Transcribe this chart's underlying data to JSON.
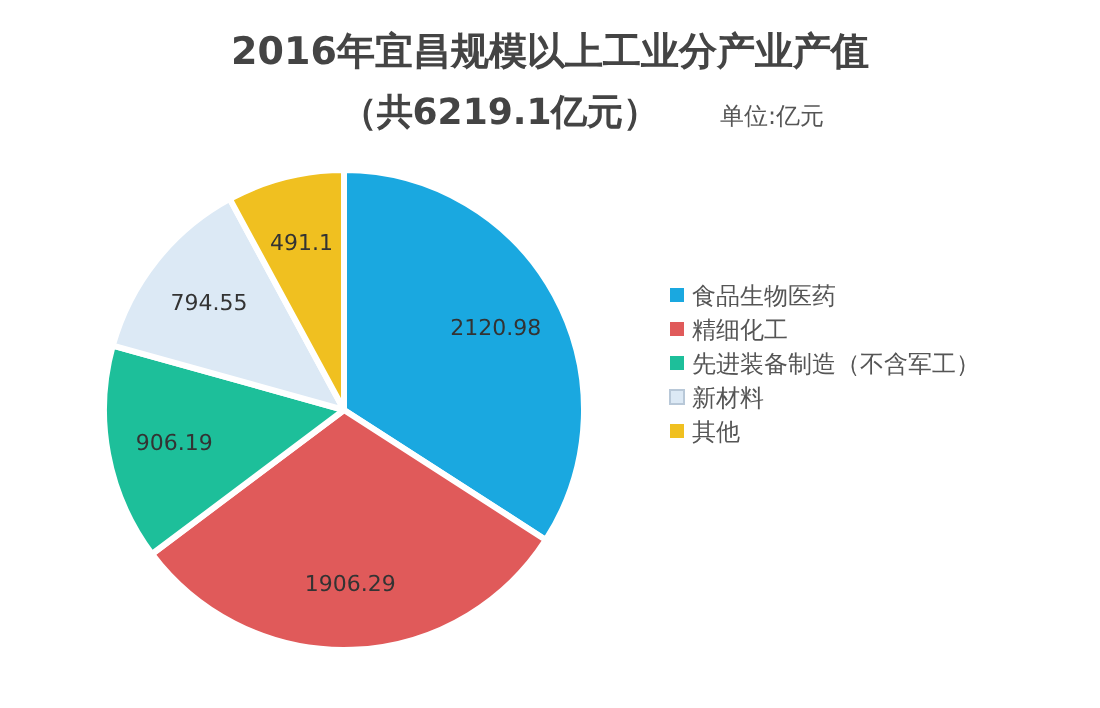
{
  "chart_data": {
    "type": "pie",
    "title": "2016年宜昌规模以上工业分产业产值",
    "subtitle": "（共6219.1亿元）",
    "annotations": [
      "单位:亿元"
    ],
    "categories": [
      "食品生物医药",
      "精细化工",
      "先进装备制造（不含军工）",
      "新材料",
      "其他"
    ],
    "values": [
      2120.98,
      1906.29,
      906.19,
      794.55,
      491.1
    ],
    "colors": [
      "#1aa8e0",
      "#e05a5a",
      "#1dbf9a",
      "#dce9f5",
      "#f0c020"
    ],
    "data_labels": true,
    "legend": "right"
  }
}
